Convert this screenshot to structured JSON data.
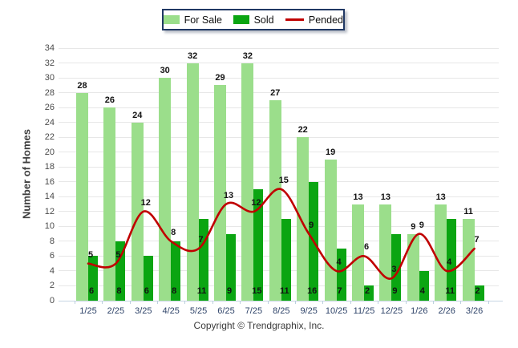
{
  "chart_data": {
    "type": "bar+line combo",
    "categories": [
      "1/25",
      "2/25",
      "3/25",
      "4/25",
      "5/25",
      "6/25",
      "7/25",
      "8/25",
      "9/25",
      "10/25",
      "11/25",
      "12/25",
      "1/26",
      "2/26",
      "3/26"
    ],
    "series": [
      {
        "name": "For Sale",
        "type": "bar",
        "color": "#9bde8b",
        "values": [
          28,
          26,
          24,
          30,
          32,
          29,
          32,
          27,
          22,
          19,
          13,
          13,
          9,
          13,
          11
        ]
      },
      {
        "name": "Sold",
        "type": "bar",
        "color": "#0ba512",
        "values": [
          6,
          8,
          6,
          8,
          11,
          9,
          15,
          11,
          16,
          7,
          2,
          9,
          4,
          11,
          2
        ]
      },
      {
        "name": "Pended",
        "type": "line",
        "color": "#c00000",
        "values": [
          5,
          5,
          12,
          8,
          7,
          13,
          12,
          15,
          9,
          4,
          6,
          3,
          9,
          4,
          7
        ]
      }
    ],
    "title": "",
    "xlabel": "",
    "ylabel": "Number of Homes",
    "ylim": [
      0,
      34
    ],
    "ytick_step": 2,
    "grid": true,
    "legend_position": "top-center",
    "value_labels": {
      "for_sale": "above bar",
      "sold": "at bar base",
      "pended": "above line point"
    }
  },
  "colors": {
    "grid": "#e7e7e7",
    "axis_line": "#c6d5e3",
    "legend_border": "#203864",
    "x_tick_text": "#2e4369",
    "y_tick_text": "#4a4a4a"
  },
  "footer": {
    "copyright": "Copyright © Trendgraphix, Inc."
  }
}
